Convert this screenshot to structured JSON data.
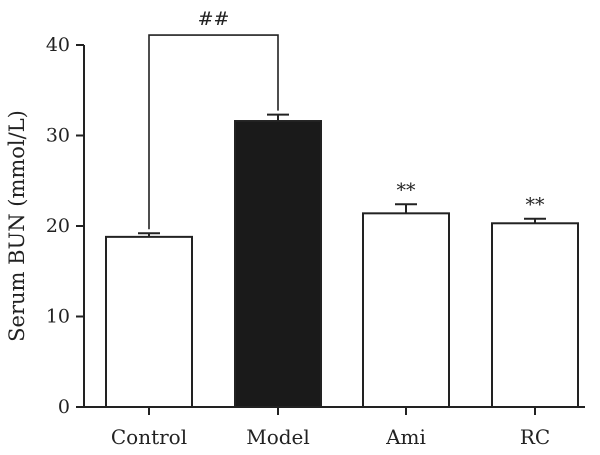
{
  "chart_data": {
    "type": "bar",
    "ylabel": "Serum BUN (mmol/L)",
    "xlabel": "",
    "title": "",
    "ylim": [
      0,
      40
    ],
    "yticks": [
      0,
      10,
      20,
      30,
      40
    ],
    "grid": false,
    "legend": "none",
    "categories": [
      "Control",
      "Model",
      "Ami",
      "RC"
    ],
    "values": [
      18.8,
      31.6,
      21.4,
      20.3
    ],
    "errors": [
      0.4,
      0.7,
      1.0,
      0.5
    ],
    "fills": [
      "#ffffff",
      "#1a1a1a",
      "#ffffff",
      "#ffffff"
    ],
    "annotations": [
      "",
      "",
      "**",
      "**"
    ],
    "comparison": {
      "from": 0,
      "to": 1,
      "label": "##",
      "y": 41.1
    }
  }
}
